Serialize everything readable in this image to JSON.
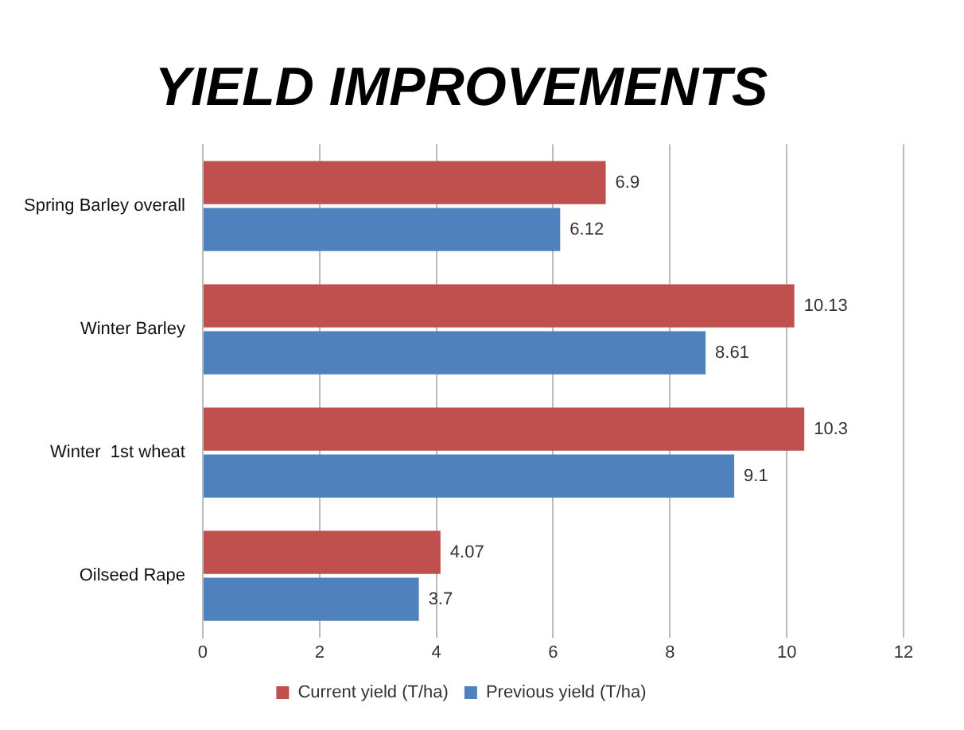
{
  "chart_data": {
    "type": "bar",
    "orientation": "horizontal",
    "title": "YIELD IMPROVEMENTS",
    "categories": [
      "Spring Barley overall",
      "Winter Barley",
      "Winter  1st wheat",
      "Oilseed Rape"
    ],
    "series": [
      {
        "name": "Current yield (T/ha)",
        "color": "#c0504d",
        "values": [
          6.9,
          10.13,
          10.3,
          4.07
        ]
      },
      {
        "name": "Previous yield (T/ha)",
        "color": "#4f81bd",
        "values": [
          6.12,
          8.61,
          9.1,
          3.7
        ]
      }
    ],
    "xlim": [
      0,
      12
    ],
    "xticks": [
      0,
      2,
      4,
      6,
      8,
      10,
      12
    ],
    "grid": "x",
    "legend": "bottom",
    "data_labels": true
  }
}
